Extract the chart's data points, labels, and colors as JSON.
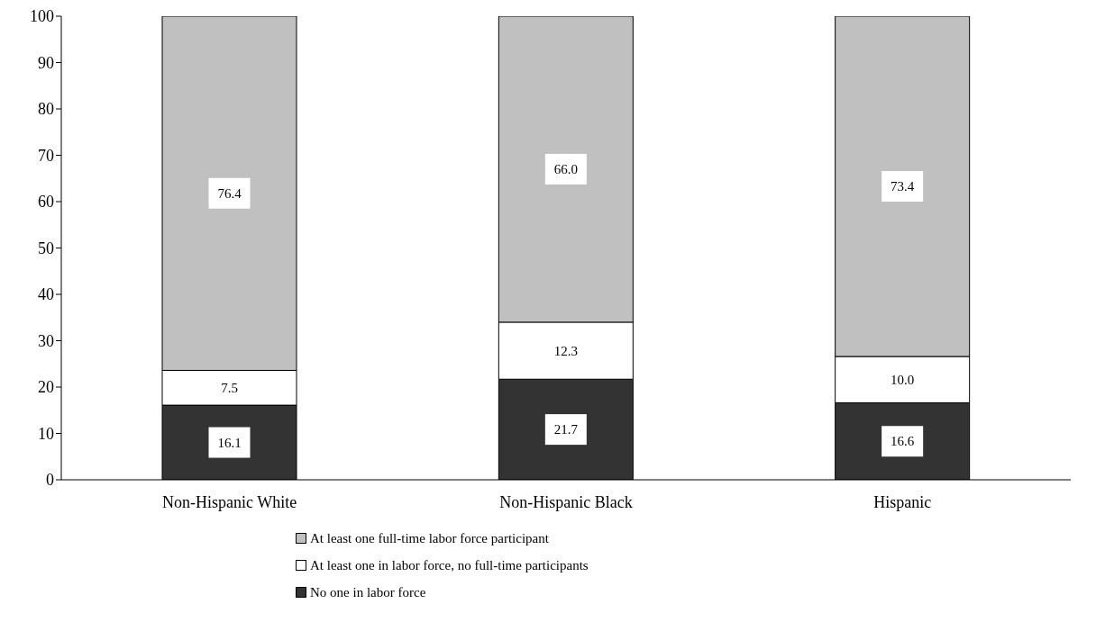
{
  "chart_data": {
    "type": "bar",
    "stacked": true,
    "categories": [
      "Non-Hispanic White",
      "Non-Hispanic Black",
      "Hispanic"
    ],
    "series": [
      {
        "name": "No one in labor force",
        "color": "#333333",
        "values": [
          16.1,
          21.7,
          16.6
        ],
        "value_labels": [
          "16.1",
          "21.7",
          "16.6"
        ]
      },
      {
        "name": "At least one in labor force, no full-time participants",
        "color": "#ffffff",
        "values": [
          7.5,
          12.3,
          10.0
        ],
        "value_labels": [
          "7.5",
          "12.3",
          "10.0"
        ]
      },
      {
        "name": "At least one full-time labor force participant",
        "color": "#c0c0c0",
        "values": [
          76.4,
          66.0,
          73.4
        ],
        "value_labels": [
          "76.4",
          "66.0",
          "73.4"
        ]
      }
    ],
    "ylim": [
      0,
      100
    ],
    "yticks": [
      0,
      10,
      20,
      30,
      40,
      50,
      60,
      70,
      80,
      90,
      100
    ],
    "grid": false,
    "legend": "bottom"
  }
}
